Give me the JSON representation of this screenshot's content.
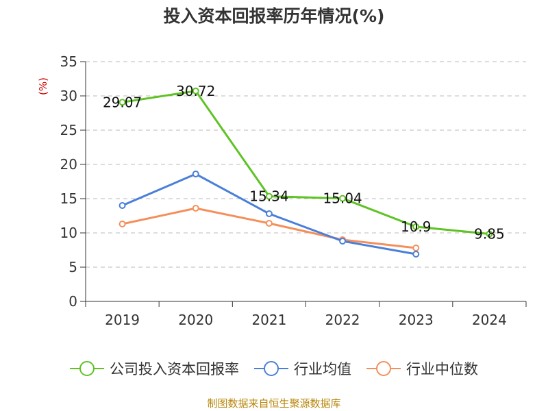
{
  "colors": {
    "series": [
      "#5ec323",
      "#4a7fd9",
      "#f58f5a"
    ],
    "axis": "#333333",
    "grid": "#bbbbbb",
    "ylabel": "#cc0000",
    "source": "#b8860b"
  },
  "chart_data": {
    "type": "line",
    "title": "投入资本回报率历年情况(%)",
    "ylabel": "(%)",
    "xlabel": "",
    "categories": [
      "2019",
      "2020",
      "2021",
      "2022",
      "2023",
      "2024"
    ],
    "ylim": [
      0,
      35
    ],
    "yticks": [
      0,
      5,
      10,
      15,
      20,
      25,
      30,
      35
    ],
    "grid": true,
    "legend_position": "bottom",
    "series": [
      {
        "name": "公司投入资本回报率",
        "values": [
          29.07,
          30.72,
          15.34,
          15.04,
          10.9,
          9.85
        ],
        "labels": [
          "29.07",
          "30.72",
          "15.34",
          "15.04",
          "10.9",
          "9.85"
        ]
      },
      {
        "name": "行业均值",
        "values": [
          14.0,
          18.6,
          12.8,
          8.8,
          6.9,
          null
        ]
      },
      {
        "name": "行业中位数",
        "values": [
          11.3,
          13.6,
          11.4,
          9.0,
          7.8,
          null
        ]
      }
    ],
    "source": "制图数据来自恒生聚源数据库"
  }
}
